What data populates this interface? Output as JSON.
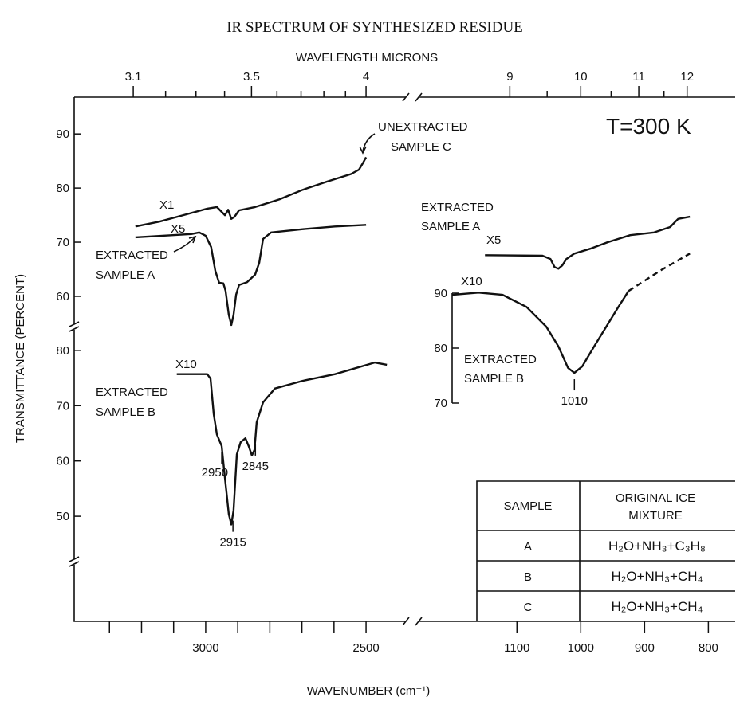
{
  "title": "IR SPECTRUM OF SYNTHESIZED RESIDUE",
  "chart_data": {
    "type": "line",
    "temperature": "T=300 K",
    "x_label": "WAVENUMBER (cm⁻¹)",
    "y_label": "TRANSMITTANCE (PERCENT)",
    "top_axis": {
      "label": "WAVELENGTH MICRONS",
      "ticks": [
        3.1,
        3.5,
        4,
        9,
        10,
        11,
        12
      ],
      "minor_ticks": [
        3.2,
        3.3,
        3.4,
        3.6,
        3.7,
        3.8,
        3.9,
        9.5,
        10.5,
        11.5
      ]
    },
    "x_segments": [
      {
        "xlim": [
          3410,
          2356
        ],
        "xticks": [
          3000,
          2500
        ],
        "minor_xticks": [
          3300,
          3200,
          3100,
          2900,
          2800,
          2700,
          2600
        ]
      },
      {
        "xlim": [
          1264,
          758
        ],
        "xticks": [
          1100,
          1000,
          900,
          800
        ]
      }
    ],
    "y_segments": [
      {
        "ylim": [
          54.4,
          96.8
        ],
        "yticks": [
          60,
          70,
          80,
          90
        ]
      },
      {
        "ylim": [
          31,
          84.3
        ],
        "yticks": [
          50,
          60,
          70,
          80
        ]
      },
      {
        "ylim": [
          70,
          90
        ],
        "yticks": [
          70,
          80,
          90
        ]
      }
    ],
    "series": [
      {
        "label": [
          "UNEXTRACTED",
          "SAMPLE C"
        ],
        "multiplier": "X1",
        "x_segment": 0,
        "y_segment": 0,
        "color": "#111111",
        "x": [
          3219,
          3144,
          3070,
          2995,
          2965,
          2950,
          2940,
          2930,
          2920,
          2910,
          2896,
          2846,
          2771,
          2697,
          2622,
          2547,
          2522,
          2510,
          2500
        ],
        "values": [
          72.9,
          73.8,
          75.0,
          76.2,
          76.5,
          75.6,
          75.0,
          76.0,
          74.3,
          74.7,
          75.9,
          76.5,
          77.9,
          79.7,
          81.2,
          82.6,
          83.4,
          84.6,
          85.7
        ]
      },
      {
        "label": [
          "EXTRACTED",
          "SAMPLE A"
        ],
        "multiplier": "X5",
        "x_segment": 0,
        "y_segment": 0,
        "color": "#111111",
        "x": [
          3219,
          3045,
          3020,
          3000,
          2983,
          2970,
          2958,
          2945,
          2938,
          2928,
          2920,
          2913,
          2905,
          2896,
          2871,
          2846,
          2833,
          2821,
          2796,
          2697,
          2597,
          2500
        ],
        "values": [
          70.9,
          71.5,
          71.8,
          71.2,
          69.1,
          64.7,
          62.5,
          62.4,
          61.0,
          56.6,
          54.7,
          56.6,
          60.3,
          62.1,
          62.6,
          64.0,
          66.2,
          70.6,
          71.8,
          72.4,
          72.9,
          73.2
        ]
      },
      {
        "label": [
          "EXTRACTED",
          "SAMPLE B"
        ],
        "multiplier": "X10",
        "x_segment": 0,
        "y_segment": 1,
        "color": "#111111",
        "peaks": [
          2950,
          2915,
          2845
        ],
        "x": [
          3090,
          2995,
          2985,
          2975,
          2965,
          2950,
          2940,
          2928,
          2920,
          2913,
          2903,
          2891,
          2876,
          2866,
          2856,
          2848,
          2841,
          2821,
          2784,
          2697,
          2597,
          2473,
          2435
        ],
        "values": [
          75.7,
          75.7,
          74.9,
          68.5,
          64.8,
          62.7,
          56.9,
          50.4,
          48.5,
          51.1,
          61.2,
          63.4,
          64.1,
          62.7,
          61.0,
          62.0,
          67.0,
          70.6,
          73.1,
          74.5,
          75.7,
          77.8,
          77.4
        ]
      },
      {
        "label": [
          "EXTRACTED",
          "SAMPLE A"
        ],
        "multiplier": "X5",
        "x_segment": 1,
        "y_segment": 0,
        "color": "#111111",
        "x": [
          1150,
          1060,
          1047.5,
          1041,
          1035,
          1029,
          1022.5,
          1010,
          985,
          960,
          922.5,
          885,
          860,
          847.5,
          829
        ],
        "values": [
          67.6,
          67.5,
          66.9,
          65.4,
          65.1,
          65.7,
          66.9,
          67.9,
          68.8,
          69.9,
          71.3,
          71.8,
          72.8,
          74.3,
          74.7
        ]
      },
      {
        "label": [
          "EXTRACTED",
          "SAMPLE B"
        ],
        "multiplier": "X10",
        "x_segment": 1,
        "y_segment": 2,
        "color": "#111111",
        "peaks": [
          1010
        ],
        "x": [
          1201,
          1160,
          1122.5,
          1085,
          1054,
          1035,
          1020,
          1010,
          997.5,
          979,
          960,
          941,
          925
        ],
        "values": [
          89.7,
          90.1,
          89.7,
          87.5,
          83.9,
          80.3,
          76.4,
          75.5,
          76.7,
          80.3,
          83.9,
          87.5,
          90.4
        ]
      },
      {
        "x_segment": 1,
        "y_segment": 2,
        "color": "#111111",
        "dashed": true,
        "x": [
          925,
          872.5,
          829
        ],
        "values": [
          90.4,
          94.3,
          97.2
        ]
      }
    ],
    "table": {
      "header": [
        "SAMPLE",
        "ORIGINAL ICE",
        "MIXTURE"
      ],
      "rows": [
        [
          "A",
          "H₂O+NH₃+C₃H₈"
        ],
        [
          "B",
          "H₂O+NH₃+CH₄"
        ],
        [
          "C",
          "H₂O+NH₃+CH₄"
        ]
      ]
    }
  }
}
